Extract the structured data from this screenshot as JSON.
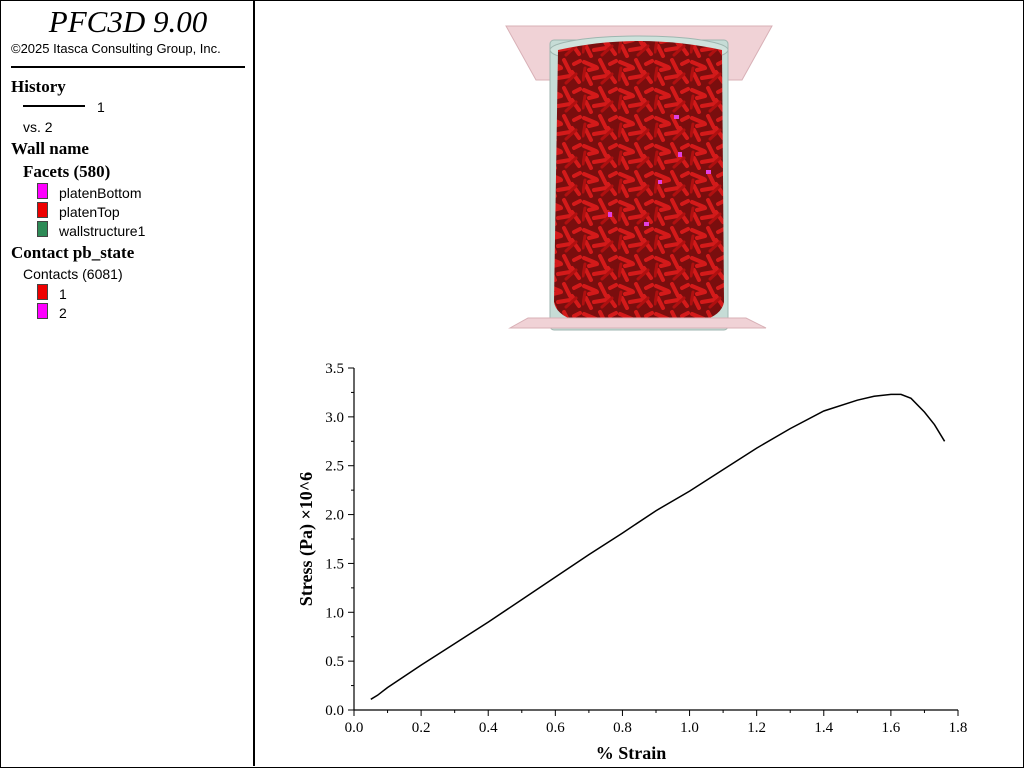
{
  "app": {
    "title": "PFC3D 9.00",
    "copyright": "©2025 Itasca Consulting Group, Inc."
  },
  "legend": {
    "history": {
      "heading": "History",
      "line_label": "1",
      "vs_label": "vs. 2"
    },
    "wall": {
      "heading": "Wall name",
      "facets_heading": "Facets (580)",
      "items": [
        {
          "label": "platenBottom",
          "color": "#ff00ff"
        },
        {
          "label": "platenTop",
          "color": "#ee0000"
        },
        {
          "label": "wallstructure1",
          "color": "#2e8b57"
        }
      ]
    },
    "contact": {
      "heading": "Contact pb_state",
      "contacts_heading": "Contacts (6081)",
      "items": [
        {
          "label": "1",
          "color": "#ee0000"
        },
        {
          "label": "2",
          "color": "#ff00ff"
        }
      ]
    }
  },
  "chart_data": {
    "type": "line",
    "xlabel": "% Strain",
    "ylabel": "Stress (Pa) ×10^6",
    "xlim": [
      0,
      1.8
    ],
    "ylim": [
      0,
      3.5
    ],
    "xticks": [
      "0.0",
      "0.2",
      "0.4",
      "0.6",
      "0.8",
      "1.0",
      "1.2",
      "1.4",
      "1.6",
      "1.8"
    ],
    "yticks": [
      "0.0",
      "0.5",
      "1.0",
      "1.5",
      "2.0",
      "2.5",
      "3.0",
      "3.5"
    ],
    "grid": false,
    "series": [
      {
        "color": "#000000",
        "x": [
          0.05,
          0.07,
          0.1,
          0.2,
          0.3,
          0.4,
          0.5,
          0.6,
          0.7,
          0.8,
          0.9,
          1.0,
          1.1,
          1.2,
          1.3,
          1.4,
          1.5,
          1.55,
          1.6,
          1.63,
          1.66,
          1.7,
          1.73,
          1.76
        ],
        "y": [
          0.11,
          0.15,
          0.23,
          0.46,
          0.68,
          0.9,
          1.13,
          1.36,
          1.59,
          1.81,
          2.04,
          2.24,
          2.46,
          2.68,
          2.88,
          3.06,
          3.17,
          3.21,
          3.23,
          3.23,
          3.19,
          3.05,
          2.92,
          2.75
        ]
      }
    ]
  }
}
